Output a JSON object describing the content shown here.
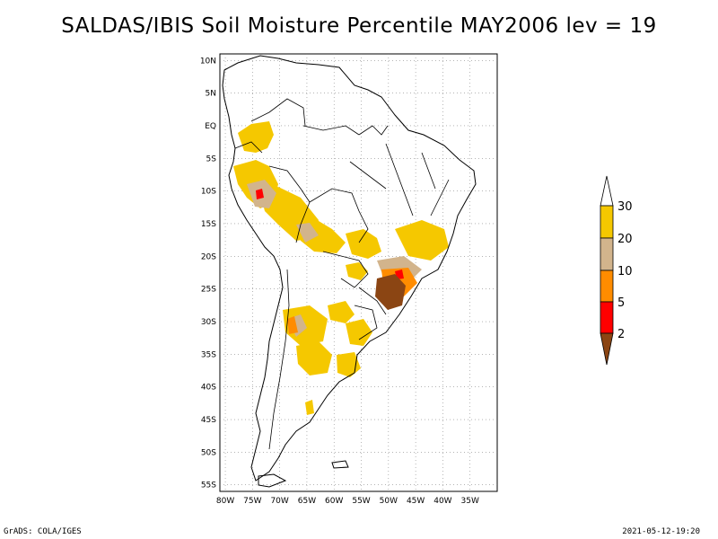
{
  "title": "SALDAS/IBIS Soil Moisture Percentile MAY2006 lev = 19",
  "footer": {
    "left": "GrADS: COLA/IGES",
    "right": "2021-05-12-19:20"
  },
  "map": {
    "lon_range": [
      -81,
      -30
    ],
    "lat_range": [
      -56,
      11
    ],
    "lat_labels": [
      "10N",
      "5N",
      "EQ",
      "5S",
      "10S",
      "15S",
      "20S",
      "25S",
      "30S",
      "35S",
      "40S",
      "45S",
      "50S",
      "55S"
    ],
    "lat_values": [
      10,
      5,
      0,
      -5,
      -10,
      -15,
      -20,
      -25,
      -30,
      -35,
      -40,
      -45,
      -50,
      -55
    ],
    "lon_labels": [
      "80W",
      "75W",
      "70W",
      "65W",
      "60W",
      "55W",
      "50W",
      "45W",
      "40W",
      "35W"
    ],
    "lon_values": [
      -80,
      -75,
      -70,
      -65,
      -60,
      -55,
      -50,
      -45,
      -40,
      -35
    ]
  },
  "legend": {
    "labels": [
      "30",
      "20",
      "10",
      "5",
      "2"
    ],
    "colors": {
      "above_30": "#ffffff",
      "20_30": "#f5c800",
      "10_20": "#d2b48c",
      "5_10": "#ff8c00",
      "2_5": "#ff0000",
      "below_2": "#8b4513"
    }
  },
  "colors": {
    "grid": "#888888",
    "border": "#000000"
  }
}
